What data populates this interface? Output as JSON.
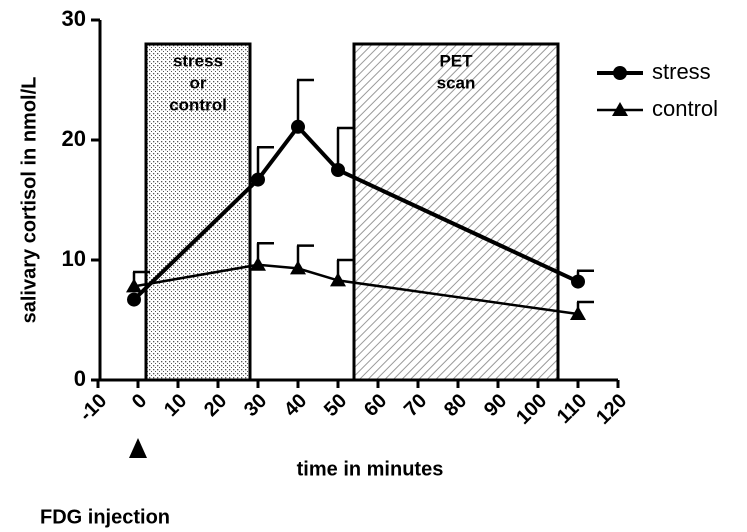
{
  "chart_data": {
    "type": "line",
    "x_label": "time in minutes",
    "y_label": "salivary cortisol in nmol/L",
    "xlim": [
      -10,
      120
    ],
    "xticks": [
      -10,
      0,
      10,
      20,
      30,
      40,
      50,
      60,
      70,
      80,
      90,
      100,
      110,
      120
    ],
    "ylim": [
      0,
      30
    ],
    "yticks": [
      0,
      10,
      20,
      30
    ],
    "legend": "top-right",
    "series": [
      {
        "name": "stress",
        "color": "#000000",
        "marker": "circle",
        "x": [
          -1,
          30,
          40,
          50,
          110
        ],
        "values": [
          6.7,
          16.7,
          21.1,
          17.5,
          8.2
        ],
        "errors": [
          null,
          2.7,
          3.9,
          3.5,
          0.9
        ]
      },
      {
        "name": "control",
        "color": "#000000",
        "marker": "triangle",
        "x": [
          -1,
          30,
          40,
          50,
          110
        ],
        "values": [
          7.8,
          9.6,
          9.3,
          8.3,
          5.5
        ],
        "errors": [
          1.2,
          1.8,
          1.9,
          1.7,
          1.0
        ]
      }
    ],
    "regions": [
      {
        "label": [
          "stress",
          "or",
          "control"
        ],
        "x": [
          2,
          28
        ],
        "top": 28,
        "pattern": "dots"
      },
      {
        "label": [
          "PET",
          "scan"
        ],
        "x": [
          54,
          105
        ],
        "top": 28,
        "pattern": "hatch"
      }
    ],
    "annotations": [
      {
        "text": "FDG injection",
        "x": 0
      }
    ]
  }
}
